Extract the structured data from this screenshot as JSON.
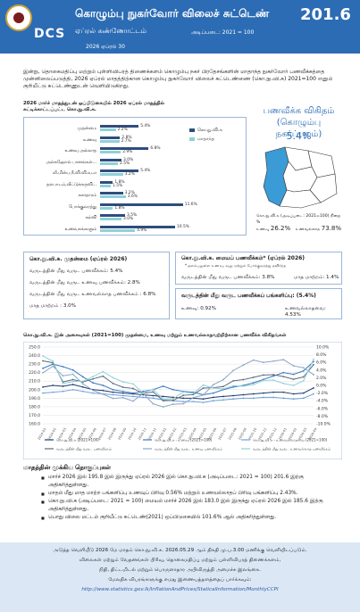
{
  "header": {
    "org": "DCS",
    "title": "கொழும்பு நுகர்வோர் விலைச் சுட்டெண்",
    "subtitle": "ஏப்ரல் கண்ணோட்டம்",
    "base": "அடிப்படை: 2021 = 100",
    "month": "2026 ஏப்ரல் 30",
    "index_value": "201.6",
    "background": "#2c6cb4"
  },
  "intro": "இன்று, தொகைமதிப்பு மற்றும் புள்ளிவிபரத் திணைக்களம் கொழும்பு நகர் பிரதேசங்களின் மாதாந்த நுகர்வோர் பணவீக்கத்தை முன்னிலைப்படுத்தி, 2026 ஏப்ரல் மாதத்திற்கான கொழும்பு நுகர்வோர் விலைச் சுட்டெண்ணை (கொ.நு.வி.சு) 2021=100 எனும் குறியீட்டு சுட்டெண்ணுடன் வெளியிடுகிறது.",
  "bar_section_title": "2026 மார்ச் மாதத்துடன் ஒப்பிடுகையில் 2026 ஏப்ரல் மாதத்தில் சுட்டிக்காட்டப்பட்ட கொ.நு.வி.சு.",
  "map": {
    "title": "பணவீக்க விகிதம் (கொழும்பு நகர்ப்புறம்)",
    "pct": "5.4%",
    "caption_label": "கொ.நு.வி.சு (அடிப்படை: 2021=100) நிறை %",
    "food_label": "உணவு",
    "food_share": "26.2%",
    "nonfood_label": "உணவல்லாத",
    "nonfood_share": "73.8%",
    "colors": {
      "highlight": "#3b9bd6",
      "other": "#ffffff"
    }
  },
  "box1": {
    "title": "கொ.நு.வி.சு. முதன்மை (ஏப்ரல் 2026)",
    "l1": "வருடத்தின் மீது வருட பணவீக்கம்: 5.4%",
    "l2": "வருடத்தின் மீது வருட உணவு பணவீக்கம்: 2.8%",
    "l3": "வருடத்தின் மீது வருட உணவல்லாத பணவீக்கம் : 6.8%",
    "l4": "மாத மாற்றம் : 3.0%"
  },
  "box2": {
    "title": "கொ.நு.வி.சு. மையப் பணவீக்கம்* (ஏப்ரல் 2026)",
    "note": "* தளம்பலுள்ள உணவு, வலு மற்றும் போக்குவரத்து தவிர்ந்த",
    "yoy": "வருடத்தின் மீது வருட பணவீக்கம்: 3.8%",
    "mom": "மாத மாற்றம்: 1.4%"
  },
  "box3": {
    "title": "வருடத்தின் மீது வருட பணவீக்கப் பங்களிப்பு: (5.4%)",
    "food": "உணவு: 0.92%",
    "nonfood": "உணவல்லாதவை: 4.53%"
  },
  "line_section_title": "கொ.நு.வி.சு. இன் அசைவுகள் (2021=100) முதன்மை, உணவு மற்றும் உணவல்லாதவற்றிற்கான பணவீக்க விகிதங்கள்",
  "findings_title": "மாதத்தின் முக்கிய தொகுப்புகள்",
  "findings": [
    "மார்ச் 2026 இல் 195.8 இல் இருந்து ஏப்ரல் 2026 இல் கொ.நு.வி.சு (அடிப்படை: 2021 = 100) 201.6 இற்கு அதிகரித்துள்ளது.",
    "மாதம் மீது மாத மாற்ற பங்களிப்பு உணவுப் பிரிவு 0.56% மற்றும் உணவல்லாதப் பிரிவு பங்களிப்பு 2.43%.",
    "கொ.நு.வி.சு (அடிப்படை: 2021 = 100) மையம் மார்ச் 2026 இல் 183.0 இல் இருந்து ஏப்ரல் 2026 இல் 185.6 இற்கு அதிகரித்துள்ளது.",
    "பொது விலை மட்டம் குறியீட்டு சுட்டெண்(2021) ஒப்பிடுகையில் 101.6% ஆல் அதிகரித்துள்ளது."
  ],
  "footer": {
    "l1": "அடுத்த வெளியீடு 2026 மே மாதம் கொ.நு.வி.சு. 2026.05.29 ஆம் திகதி மு.ப.3.00 மணிக்கு வெளியிடப்படும்.",
    "l2": "விலைகள் மற்றும் வேதனங்கள் பிரிவு, தொகைமதிப்பு மற்றும் புள்ளிவிபரத் திணைக்களம்,",
    "l3": "நிதி, திட்டமிடல் மற்றும் பொருளாதார அபிவிருத்தி அமைச்சு இலங்கை.",
    "l4": "மேலதிக விபரங்களுக்கு எமது இணையத்தளத்தைப் பார்க்கவும்:",
    "url": "http://www.statistics.gov.lk/InflationAndPrices/StaticalInformation/MonthlyCCPI"
  },
  "chart_data": [
    {
      "type": "bar",
      "title": "2026 மார்ச் மாதத்துடன் ஒப்பிடுகையில் 2026 ஏப்ரல் மாதத்தில் சுட்டிக்காட்டப்பட்ட கொ.நு.வி.சு.",
      "categories": [
        "முதன்மை",
        "உணவு",
        "உணவு அல்லாத",
        "அல்கஹோல் பானங்கள்...",
        "வீ.மின்ப.நீ.வி.வி.வ.எ",
        "தளபாடம்,வீட்டுக்கருவி...",
        "சுகாதாரம்",
        "போக்குவரத்து",
        "கல்வி",
        "உணவகங்களும்"
      ],
      "series": [
        {
          "name": "கொ.நு.வி.சு",
          "color": "#2f4d7e",
          "values": [
            5.4,
            2.8,
            6.8,
            3.0,
            5.4,
            1.8,
            3.2,
            11.6,
            3.5,
            10.5
          ]
        },
        {
          "name": "மாதாந்த",
          "color": "#8fd1d8",
          "values": [
            2.2,
            2.7,
            2.9,
            2.5,
            3.2,
            1.5,
            3.6,
            1.8,
            3.0,
            4.9
          ]
        }
      ]
    },
    {
      "type": "line",
      "title": "கொ.நு.வி.சு. இன் அசைவுகள் (2021=100) முதன்மை, உணவு மற்றும் உணவல்லாதவற்றிற்கான பணவீக்க விகிதங்கள்",
      "x": [
        "2024-01",
        "2024-02",
        "2024-03",
        "2024-04",
        "2024-05",
        "2024-06",
        "2024-07",
        "2024-08",
        "2024-09",
        "2024-10",
        "2024-11",
        "2024-12",
        "2025-01",
        "2025-02",
        "2025-03",
        "2025-04",
        "2025-05",
        "2025-06",
        "2025-07",
        "2025-08",
        "2025-09",
        "2025-10",
        "2025-11",
        "2025-12",
        "2026-01",
        "2026-02",
        "2026-03",
        "2026-04"
      ],
      "y_left": {
        "min": 160,
        "max": 250,
        "ticks": [
          160,
          170,
          180,
          190,
          200,
          210,
          220,
          230,
          240,
          250
        ]
      },
      "y_right": {
        "min": -10,
        "max": 10,
        "ticks": [
          "-10.0%",
          "-8.0%",
          "-6.0%",
          "-4.0%",
          "-2.0%",
          "0.0%",
          "2.0%",
          "4.0%",
          "6.0%",
          "8.0%",
          "10.0%"
        ]
      },
      "series": [
        {
          "name": "கொ.நு.வி.சு (2021=100)",
          "axis": "left",
          "color": "#1f3c6e",
          "values": [
            203,
            205,
            204,
            206,
            203,
            200,
            199,
            197,
            196,
            195,
            194,
            193,
            192,
            191,
            190,
            190,
            189,
            191,
            192,
            193,
            194,
            195,
            196,
            197,
            197,
            195,
            196,
            202
          ]
        },
        {
          "name": "கொ.நு.வி.சு - உணவு (2021=100)",
          "axis": "left",
          "color": "#3a78c2",
          "values": [
            225,
            230,
            227,
            223,
            215,
            208,
            205,
            200,
            198,
            196,
            198,
            200,
            204,
            200,
            198,
            197,
            194,
            196,
            200,
            203,
            205,
            208,
            212,
            216,
            220,
            218,
            222,
            233
          ]
        },
        {
          "name": "கொ.நு.வி.சு - உணவல்லாதவை (2021=100)",
          "axis": "left",
          "color": "#6f9fd8",
          "values": [
            196,
            197,
            198,
            200,
            198,
            196,
            195,
            194,
            193,
            192,
            191,
            190,
            188,
            187,
            186,
            186,
            185,
            187,
            188,
            189,
            190,
            190,
            191,
            191,
            190,
            189,
            190,
            195
          ]
        },
        {
          "name": "வருடத்தின் மீது வருட பணவீக்கம்",
          "axis": "right",
          "color": "#5b6b7c",
          "values": [
            6.4,
            5.9,
            0.9,
            1.5,
            0.9,
            1.7,
            2.4,
            0.5,
            -0.5,
            -0.8,
            -2.1,
            -1.7,
            -4.0,
            -3.9,
            -2.6,
            -2.4,
            -0.7,
            -0.6,
            -0.3,
            1.2,
            1.5,
            2.1,
            2.7,
            2.8,
            2.3,
            1.6,
            2.2,
            5.4
          ]
        },
        {
          "name": "வருடத்தின் மீது வருட உணவு பணவீக்கம்",
          "axis": "right",
          "color": "#8ca6c6",
          "values": [
            3.3,
            5.0,
            2.5,
            2.9,
            0.4,
            -1.3,
            -2.3,
            -3.4,
            -3.2,
            -4.1,
            -2.1,
            -4.8,
            -5.6,
            -4.9,
            -4.8,
            -3.2,
            -2.5,
            0.2,
            1.5,
            3.9,
            5.3,
            6.6,
            6.0,
            6.3,
            6.7,
            5.1,
            4.6,
            2.8
          ]
        },
        {
          "name": "வருடத்தின் மீது வருட உணவல்லாத பணவீக்கம்",
          "axis": "right",
          "color": "#8fd1d8",
          "values": [
            7.7,
            6.3,
            0.5,
            1.0,
            1.1,
            2.3,
            3.6,
            2.0,
            0.9,
            0.4,
            -2.0,
            -1.0,
            -3.6,
            -3.5,
            -1.7,
            -2.1,
            0.1,
            -0.7,
            -0.9,
            -0.1,
            -0.2,
            0.2,
            1.3,
            1.4,
            0.5,
            0.0,
            1.2,
            6.8
          ]
        }
      ]
    }
  ]
}
